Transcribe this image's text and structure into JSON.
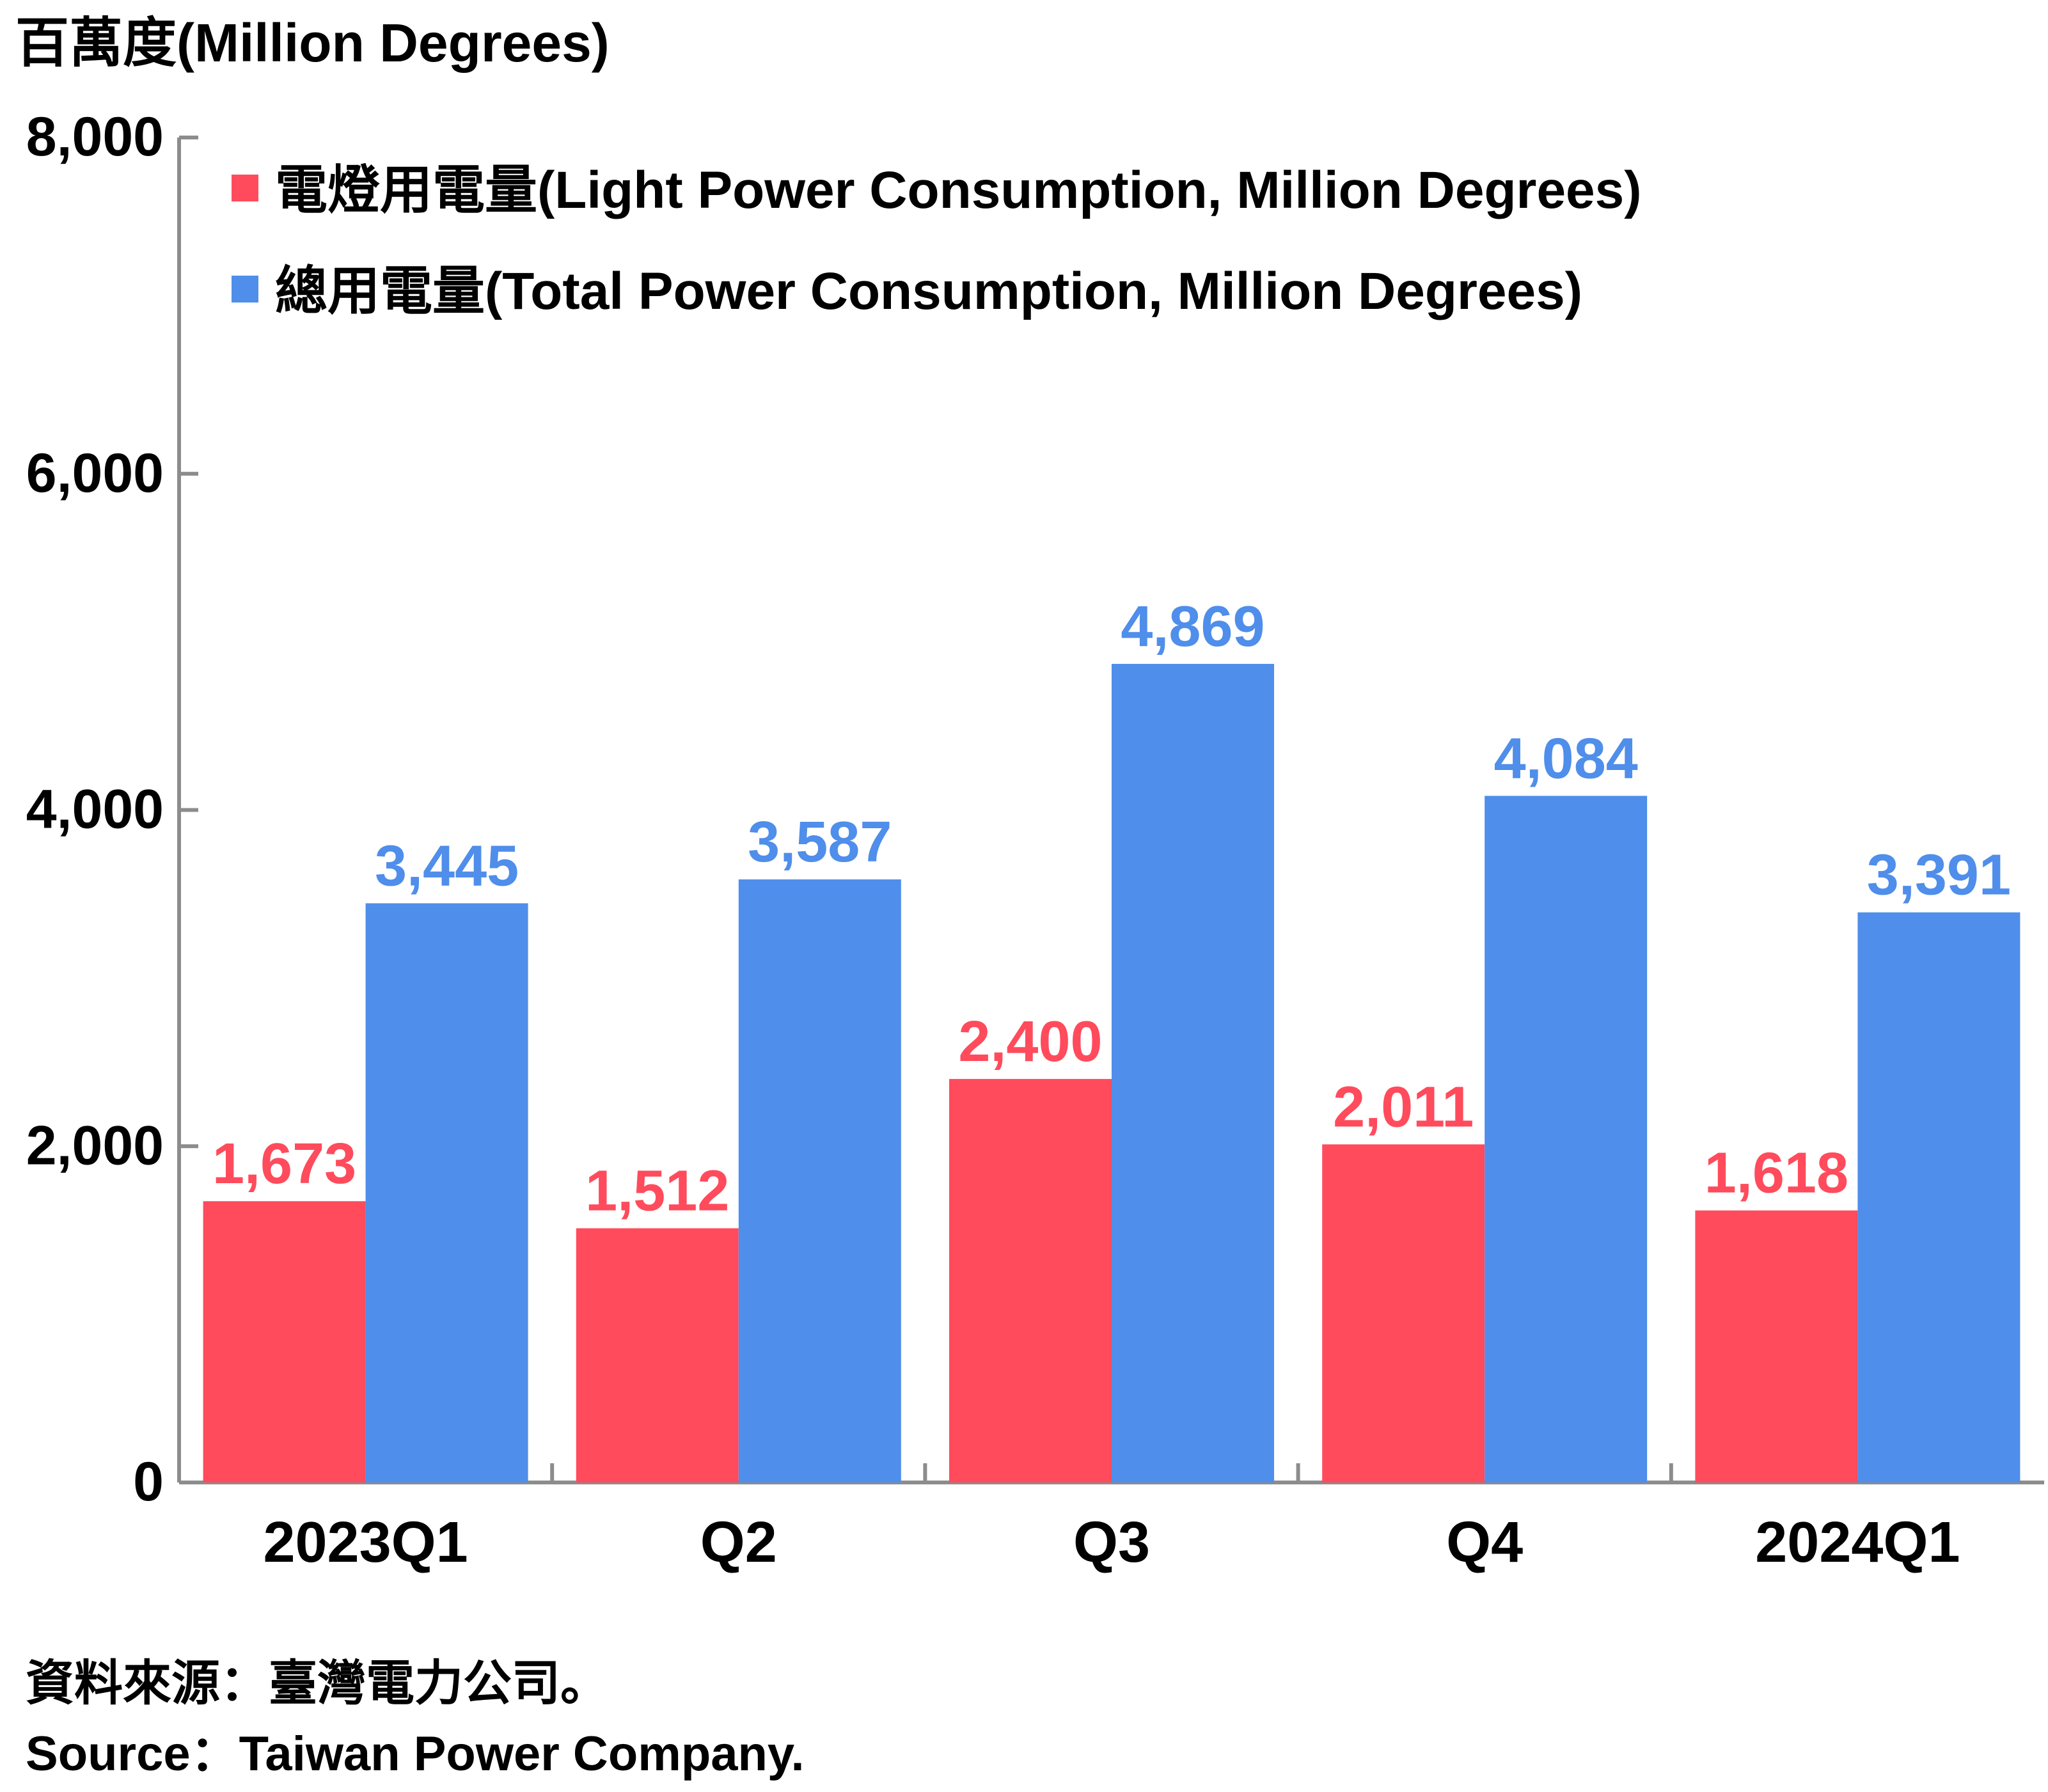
{
  "chart_data": {
    "type": "bar",
    "ylabel": "百萬度(Million Degrees)",
    "categories": [
      "2023Q1",
      "Q2",
      "Q3",
      "Q4",
      "2024Q1"
    ],
    "series": [
      {
        "name": "電燈用電量(Light Power Consumption, Million Degrees)",
        "color": "#FF4B5C",
        "values": [
          1673,
          1512,
          2400,
          2011,
          1618
        ]
      },
      {
        "name": "總用電量(Total Power Consumption, Million Degrees)",
        "color": "#4F8EEA",
        "values": [
          3445,
          3587,
          4869,
          4084,
          3391
        ]
      }
    ],
    "data_labels": [
      [
        "1,673",
        "1,512",
        "2,400",
        "2,011",
        "1,618"
      ],
      [
        "3,445",
        "3,587",
        "4,869",
        "4,084",
        "3,391"
      ]
    ],
    "ylim": [
      0,
      8000
    ],
    "yticks": [
      0,
      2000,
      4000,
      6000,
      8000
    ],
    "ytick_labels": [
      "0",
      "2,000",
      "4,000",
      "6,000",
      "8,000"
    ],
    "legend": "top-left",
    "grid": false
  },
  "source": {
    "zh": "資料來源：臺灣電力公司。",
    "en": "Source：Taiwan Power Company."
  }
}
